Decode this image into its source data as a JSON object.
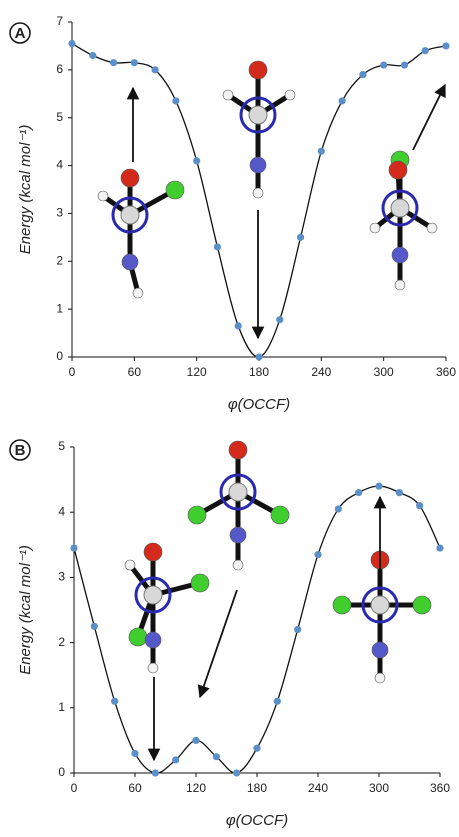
{
  "chart_data": [
    {
      "type": "line",
      "label": "A",
      "x_label": "φ(OCCF)",
      "y_label": "Energy (kcal mol⁻¹)",
      "x": [
        0,
        20,
        40,
        60,
        80,
        100,
        120,
        140,
        160,
        180,
        200,
        220,
        240,
        260,
        280,
        300,
        320,
        340,
        360
      ],
      "series": [
        {
          "color": "#5b8fc7",
          "line_color": "#111111",
          "values": [
            6.55,
            6.3,
            6.15,
            6.15,
            6.0,
            5.35,
            4.1,
            2.3,
            0.65,
            0,
            0.78,
            2.5,
            4.3,
            5.35,
            5.9,
            6.1,
            6.1,
            6.4,
            6.5
          ]
        }
      ],
      "xlim": [
        0,
        360
      ],
      "ylim": [
        0,
        7
      ],
      "xticks": [
        0,
        60,
        120,
        180,
        240,
        300,
        360
      ],
      "yticks": [
        0,
        1,
        2,
        3,
        4,
        5,
        6,
        7
      ]
    },
    {
      "type": "line",
      "label": "B",
      "x_label": "φ(OCCF)",
      "y_label": "Energy (kcal mol⁻¹)",
      "x": [
        0,
        20,
        40,
        60,
        80,
        100,
        120,
        140,
        160,
        180,
        200,
        220,
        240,
        260,
        280,
        300,
        320,
        340,
        360
      ],
      "series": [
        {
          "color": "#5b8fc7",
          "line_color": "#111111",
          "values": [
            3.45,
            2.25,
            1.1,
            0.3,
            0,
            0.2,
            0.5,
            0.25,
            0,
            0.38,
            1.1,
            2.2,
            3.35,
            4.05,
            4.3,
            4.4,
            4.3,
            4.1,
            3.45
          ]
        }
      ],
      "xlim": [
        0,
        360
      ],
      "ylim": [
        0,
        5
      ],
      "xticks": [
        0,
        60,
        120,
        180,
        240,
        300,
        360
      ],
      "yticks": [
        0,
        1,
        2,
        3,
        4,
        5
      ]
    }
  ]
}
